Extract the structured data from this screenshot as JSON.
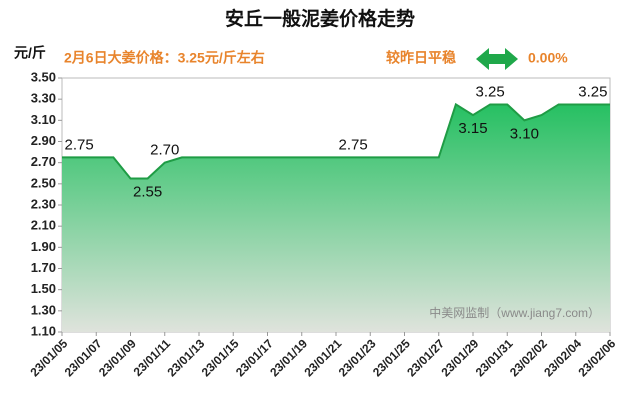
{
  "chart_data": {
    "type": "area",
    "title": "安丘一般泥姜价格走势",
    "y_axis_label": "元/斤",
    "annotations": {
      "price": "2月6日大姜价格：3.25元/斤左右",
      "trend": "较昨日平稳",
      "change": "0.00%",
      "source": "中美网监制（www.jiang7.com）"
    },
    "categories": [
      "23/01/05",
      null,
      "23/01/07",
      null,
      "23/01/09",
      null,
      "23/01/11",
      null,
      "23/01/13",
      null,
      "23/01/15",
      null,
      "23/01/17",
      null,
      "23/01/19",
      null,
      "23/01/21",
      null,
      "23/01/23",
      null,
      "23/01/25",
      null,
      "23/01/27",
      null,
      "23/01/29",
      null,
      "23/01/31",
      null,
      "23/02/02",
      null,
      "23/02/04",
      null,
      "23/02/06"
    ],
    "values": [
      2.75,
      2.75,
      2.75,
      2.75,
      2.55,
      2.55,
      2.7,
      2.75,
      2.75,
      2.75,
      2.75,
      2.75,
      2.75,
      2.75,
      2.75,
      2.75,
      2.75,
      2.75,
      2.75,
      2.75,
      2.75,
      2.75,
      2.75,
      3.25,
      3.15,
      3.25,
      3.25,
      3.1,
      3.15,
      3.25,
      3.25,
      3.25,
      3.25
    ],
    "value_labels": [
      null,
      "2.75",
      null,
      null,
      null,
      "2.55",
      "2.70",
      null,
      null,
      null,
      null,
      null,
      null,
      null,
      null,
      null,
      null,
      "2.75",
      null,
      null,
      null,
      null,
      null,
      null,
      "3.15",
      "3.25",
      null,
      "3.10",
      null,
      null,
      null,
      "3.25",
      null
    ],
    "color": "#1f9c45",
    "ylim": [
      1.1,
      3.5
    ],
    "yticks": [
      {
        "value": 1.1,
        "label": "1.10"
      },
      {
        "value": 1.3,
        "label": "1.30"
      },
      {
        "value": 1.5,
        "label": "1.50"
      },
      {
        "value": 1.7,
        "label": "1.70"
      },
      {
        "value": 1.9,
        "label": "1.90"
      },
      {
        "value": 2.1,
        "label": "2.10"
      },
      {
        "value": 2.3,
        "label": "2.30"
      },
      {
        "value": 2.5,
        "label": "2.50"
      },
      {
        "value": 2.7,
        "label": "2.70"
      },
      {
        "value": 2.9,
        "label": "2.90"
      },
      {
        "value": 3.1,
        "label": "3.10"
      },
      {
        "value": 3.3,
        "label": "3.30"
      },
      {
        "value": 3.5,
        "label": "3.50"
      }
    ],
    "grid": false
  }
}
